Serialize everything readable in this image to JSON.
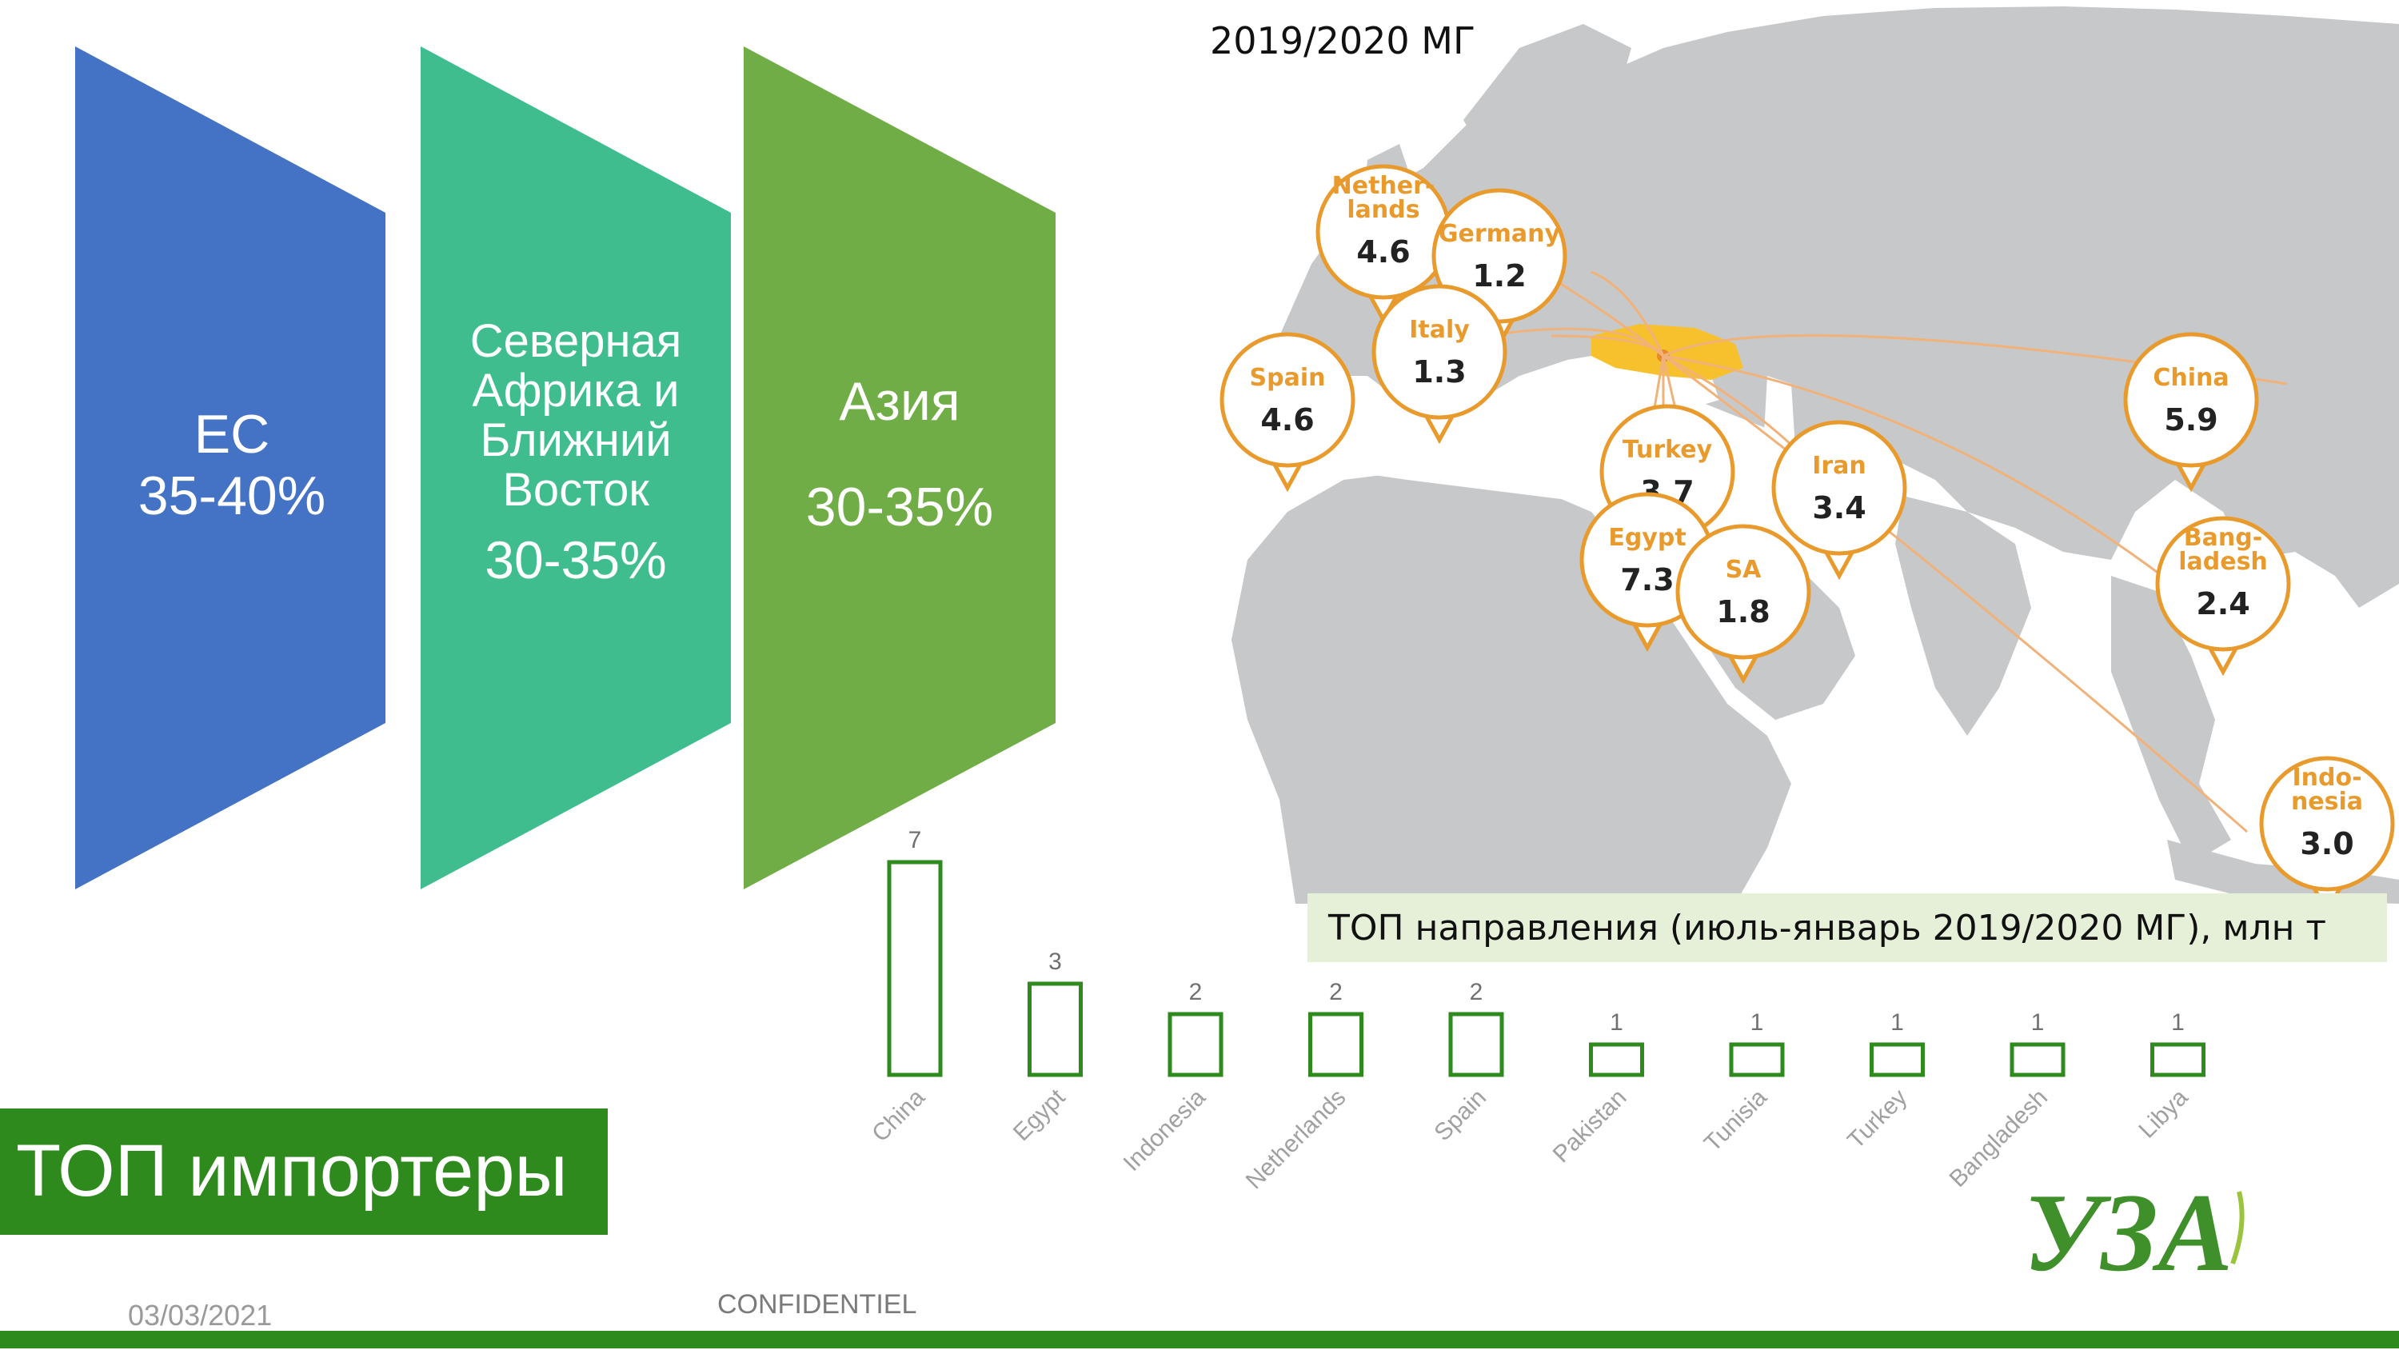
{
  "regions": [
    {
      "name": "ЕС",
      "share": "35-40%",
      "color": "#4472c4"
    },
    {
      "name": "Северная Африка и Ближний Восток",
      "share": "30-35%",
      "color": "#40bd8e"
    },
    {
      "name": "Азия",
      "share": "30-35%",
      "color": "#70ad47"
    }
  ],
  "map": {
    "title": "2019/2020 МГ",
    "callouts": [
      {
        "label": "Nether-\nlands",
        "value": "4.6"
      },
      {
        "label": "Germany",
        "value": "1.2"
      },
      {
        "label": "Italy",
        "value": "1.3"
      },
      {
        "label": "Spain",
        "value": "4.6"
      },
      {
        "label": "Turkey",
        "value": "3.7"
      },
      {
        "label": "Egypt",
        "value": "7.3"
      },
      {
        "label": "SA",
        "value": "1.8"
      },
      {
        "label": "Iran",
        "value": "3.4"
      },
      {
        "label": "China",
        "value": "5.9"
      },
      {
        "label": "Bang-\nladesh",
        "value": "2.4"
      },
      {
        "label": "Indo-\nnesia",
        "value": "3.0"
      }
    ]
  },
  "legend": {
    "text": "ТОП направления (июль-январь 2019/2020 МГ), млн т"
  },
  "chart_data": {
    "type": "bar",
    "categories": [
      "China",
      "Egypt",
      "Indonesia",
      "Netherlands",
      "Spain",
      "Pakistan",
      "Tunisia",
      "Turkey",
      "Bangladesh",
      "Libya"
    ],
    "values": [
      7,
      3,
      2,
      2,
      2,
      1,
      1,
      1,
      1,
      1
    ],
    "title": "",
    "xlabel": "",
    "ylabel": "",
    "color": "#2f8a1e",
    "grid": false
  },
  "top_label": "ТОП импортеры",
  "footer": {
    "date": "03/03/2021",
    "confidential": "CONFIDENTIEL"
  },
  "logo": {
    "text": "УЗА",
    "color": "#3f8f2a"
  }
}
